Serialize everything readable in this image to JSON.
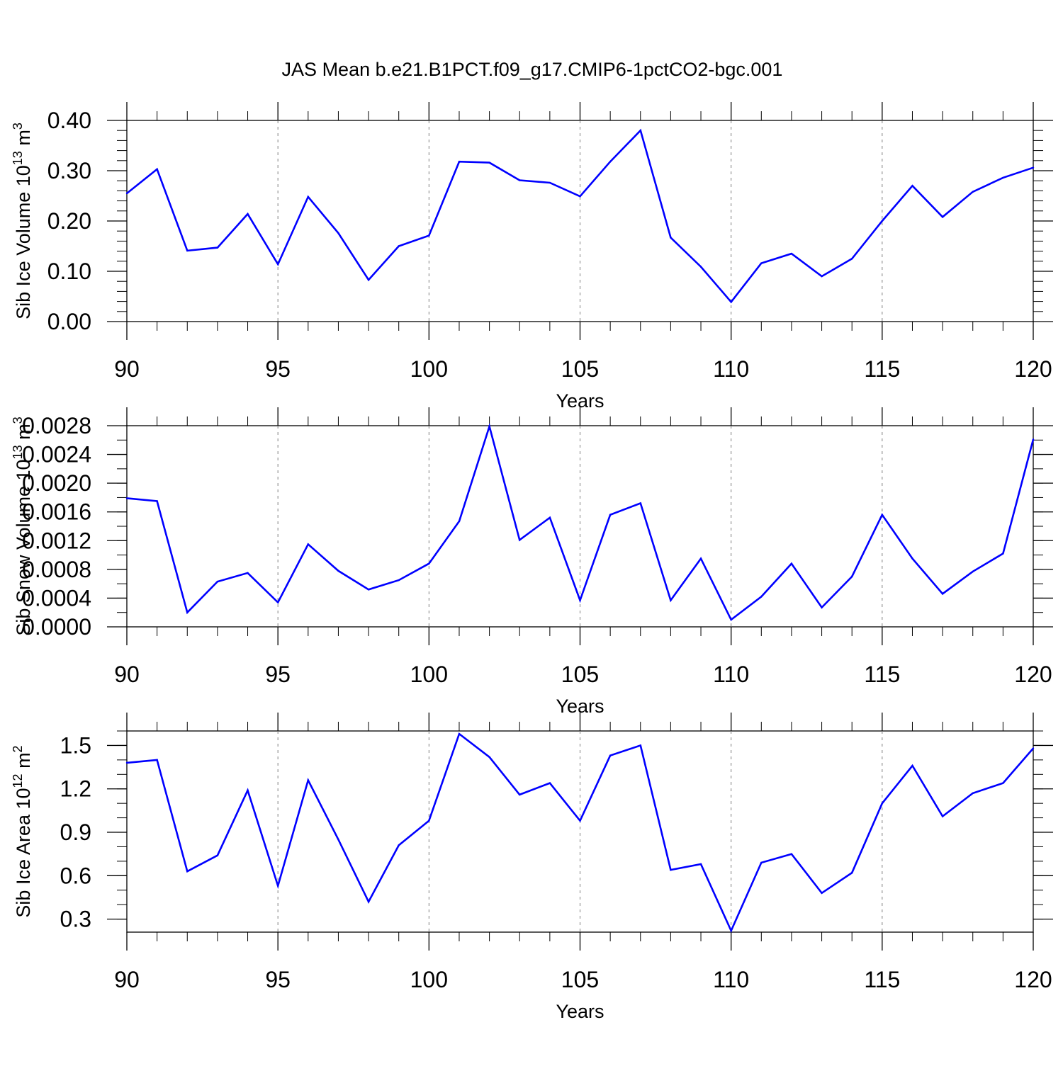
{
  "figure_title": "JAS Mean b.e21.B1PCT.f09_g17.CMIP6-1pctCO2-bgc.001",
  "colors": {
    "line": "#0000ff",
    "axis": "#000000",
    "gridline": "#808080",
    "background": "#ffffff"
  },
  "chart_data": [
    {
      "type": "line",
      "ylabel": {
        "text": "Sib Ice Volume 10",
        "exponent": "13",
        "unit": "m",
        "unit_exponent": "3"
      },
      "xlabel": "Years",
      "xlim": [
        90,
        120
      ],
      "ylim": [
        0,
        0.4
      ],
      "x_ticks": [
        "90",
        "95",
        "100",
        "105",
        "110",
        "115",
        "120"
      ],
      "y_ticks": [
        "0.00",
        "0.10",
        "0.20",
        "0.30",
        "0.40"
      ],
      "x": [
        90,
        91,
        92,
        93,
        94,
        95,
        96,
        97,
        98,
        99,
        100,
        101,
        102,
        103,
        104,
        105,
        106,
        107,
        108,
        109,
        110,
        111,
        112,
        113,
        114,
        115,
        116,
        117,
        118,
        119,
        120
      ],
      "values": [
        0.255,
        0.303,
        0.141,
        0.147,
        0.214,
        0.114,
        0.248,
        0.176,
        0.083,
        0.15,
        0.171,
        0.318,
        0.316,
        0.281,
        0.276,
        0.249,
        0.318,
        0.38,
        0.167,
        0.109,
        0.039,
        0.116,
        0.135,
        0.09,
        0.125,
        0.2,
        0.27,
        0.208,
        0.258,
        0.286,
        0.306
      ]
    },
    {
      "type": "line",
      "ylabel": {
        "text": "Sib Snow Volume 10",
        "exponent": "13",
        "unit": "m",
        "unit_exponent": "3"
      },
      "xlabel": "Years",
      "xlim": [
        90,
        120
      ],
      "ylim": [
        0,
        0.0028
      ],
      "x_ticks": [
        "90",
        "95",
        "100",
        "105",
        "110",
        "115",
        "120"
      ],
      "y_ticks": [
        "0.0000",
        "0.0004",
        "0.0008",
        "0.0012",
        "0.0016",
        "0.0020",
        "0.0024",
        "0.0028"
      ],
      "x": [
        90,
        91,
        92,
        93,
        94,
        95,
        96,
        97,
        98,
        99,
        100,
        101,
        102,
        103,
        104,
        105,
        106,
        107,
        108,
        109,
        110,
        111,
        112,
        113,
        114,
        115,
        116,
        117,
        118,
        119,
        120
      ],
      "values": [
        0.00179,
        0.00175,
        0.0002,
        0.00063,
        0.00075,
        0.00034,
        0.00115,
        0.00078,
        0.00052,
        0.00065,
        0.00088,
        0.00147,
        0.00279,
        0.00121,
        0.00152,
        0.00037,
        0.00156,
        0.00172,
        0.00037,
        0.00095,
        0.0001,
        0.00042,
        0.00088,
        0.00027,
        0.0007,
        0.00156,
        0.00095,
        0.00046,
        0.00077,
        0.00102,
        0.00261
      ]
    },
    {
      "type": "line",
      "ylabel": {
        "text": "Sib Ice Area 10",
        "exponent": "12",
        "unit": "m",
        "unit_exponent": "2"
      },
      "xlabel": "Years",
      "xlim": [
        90,
        120
      ],
      "ylim": [
        0.21,
        1.6
      ],
      "x_ticks": [
        "90",
        "95",
        "100",
        "105",
        "110",
        "115",
        "120"
      ],
      "y_ticks": [
        "0.3",
        "0.6",
        "0.9",
        "1.2",
        "1.5"
      ],
      "y_tick_values": [
        0.3,
        0.6,
        0.9,
        1.2,
        1.5
      ],
      "x": [
        90,
        91,
        92,
        93,
        94,
        95,
        96,
        97,
        98,
        99,
        100,
        101,
        102,
        103,
        104,
        105,
        106,
        107,
        108,
        109,
        110,
        111,
        112,
        113,
        114,
        115,
        116,
        117,
        118,
        119,
        120
      ],
      "values": [
        1.38,
        1.4,
        0.63,
        0.74,
        1.19,
        0.53,
        1.26,
        0.85,
        0.42,
        0.81,
        0.98,
        1.58,
        1.42,
        1.16,
        1.24,
        0.98,
        1.43,
        1.5,
        0.64,
        0.68,
        0.22,
        0.69,
        0.75,
        0.48,
        0.62,
        1.1,
        1.36,
        1.01,
        1.17,
        1.24,
        1.48
      ]
    }
  ]
}
